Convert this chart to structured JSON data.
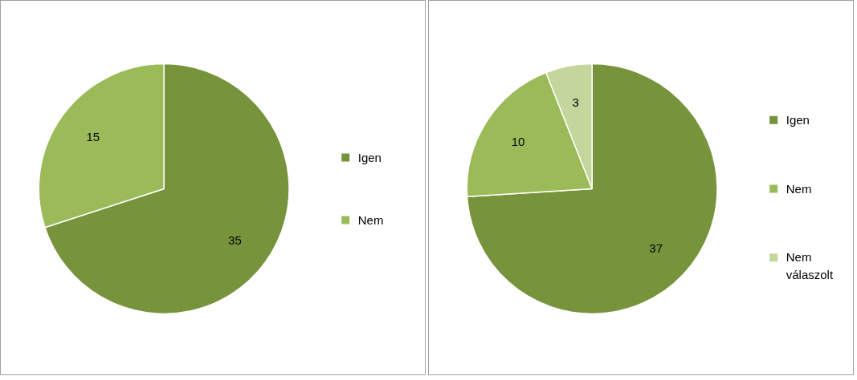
{
  "chart_data": [
    {
      "type": "pie",
      "categories": [
        "Igen",
        "Nem"
      ],
      "values": [
        35,
        15
      ],
      "colors": [
        "#77933c",
        "#9bbb59"
      ],
      "data_labels": true,
      "legend": "right"
    },
    {
      "type": "pie",
      "categories": [
        "Igen",
        "Nem",
        "Nem válaszolt"
      ],
      "values": [
        37,
        10,
        3
      ],
      "colors": [
        "#77933c",
        "#9bbb59",
        "#c3d69b"
      ],
      "data_labels": true,
      "legend": "right"
    }
  ]
}
